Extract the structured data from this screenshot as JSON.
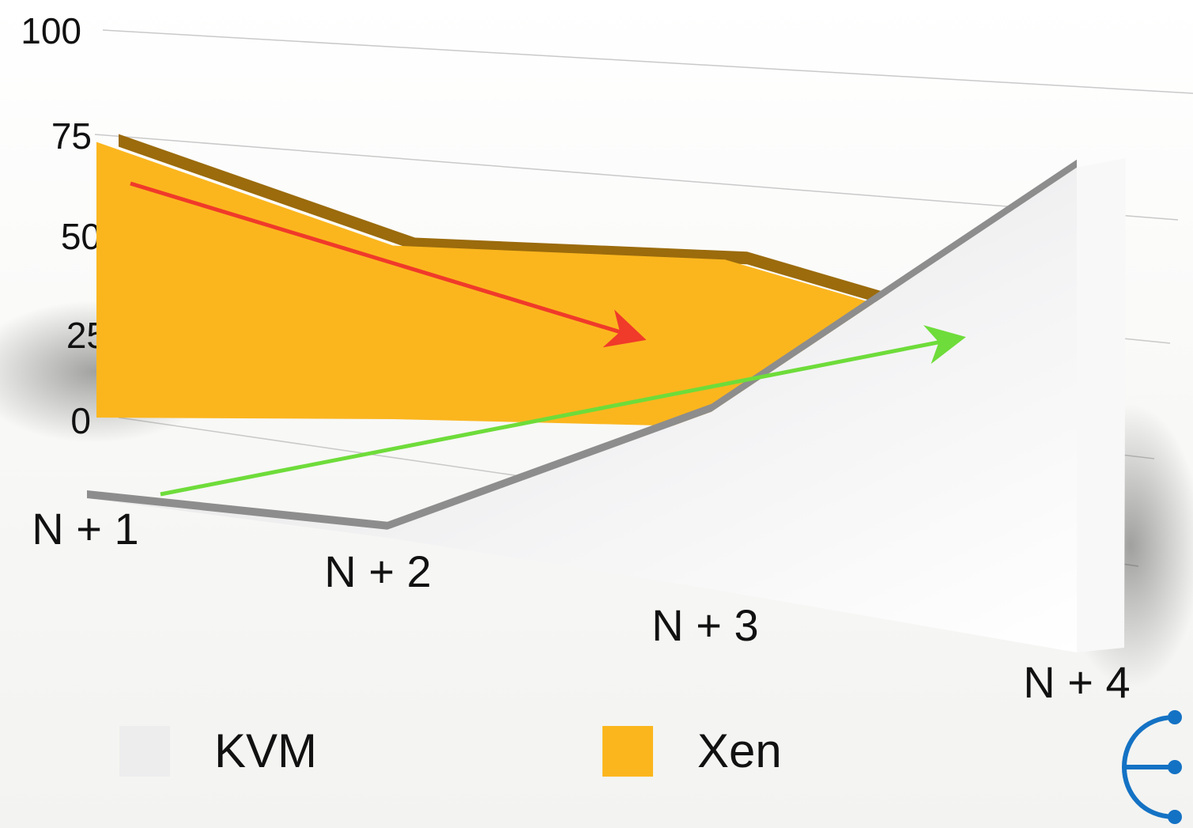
{
  "chart_data": {
    "type": "area",
    "title": "",
    "xlabel": "",
    "ylabel": "",
    "categories": [
      "N + 1",
      "N + 2",
      "N + 3",
      "N + 4"
    ],
    "y_ticks": [
      "0",
      "25",
      "50",
      "75",
      "100"
    ],
    "ylim": [
      0,
      100
    ],
    "series": [
      {
        "name": "Xen",
        "values": [
          75,
          48,
          46,
          22
        ],
        "color": "#FBB61E"
      },
      {
        "name": "KVM",
        "values": [
          0,
          1,
          22,
          73
        ],
        "color": "#EDEDEE"
      }
    ],
    "legend": [
      "KVM",
      "Xen"
    ],
    "legend_position": "bottom",
    "annotations": [
      {
        "type": "arrow",
        "color": "#F03A2A",
        "meaning": "Xen trend down"
      },
      {
        "type": "arrow",
        "color": "#6EDC3A",
        "meaning": "KVM trend up"
      }
    ],
    "grid": true
  },
  "legend": {
    "kvm": {
      "label": "KVM",
      "color": "#EDEDEE"
    },
    "xen": {
      "label": "Xen",
      "color": "#FBB61E"
    }
  },
  "logo": {
    "icon": "branch-fork-icon",
    "color": "#1472C4"
  }
}
